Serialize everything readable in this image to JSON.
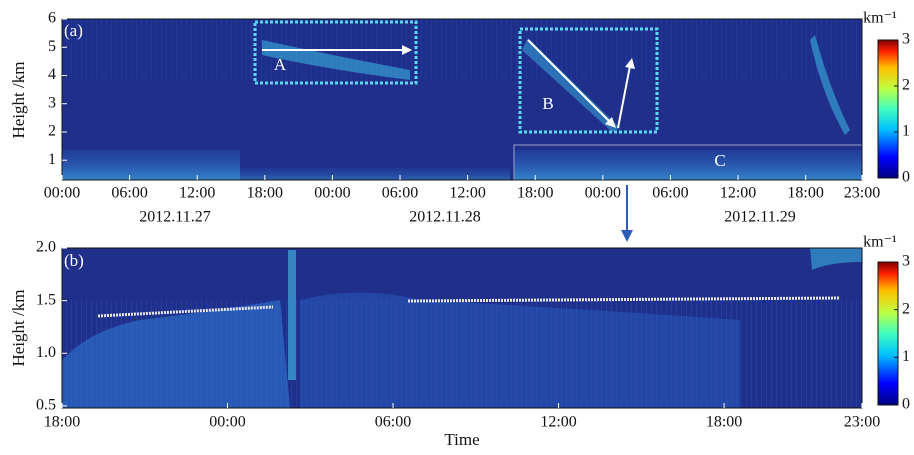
{
  "chart_data": [
    {
      "type": "heatmap",
      "panel_label": "(a)",
      "y_label": "Height /km",
      "xlim": [
        0,
        71
      ],
      "xticks": [
        {
          "value": 0,
          "label": "00:00"
        },
        {
          "value": 6,
          "label": "06:00"
        },
        {
          "value": 12,
          "label": "12:00"
        },
        {
          "value": 18,
          "label": "18:00"
        },
        {
          "value": 24,
          "label": "00:00"
        },
        {
          "value": 30,
          "label": "06:00"
        },
        {
          "value": 36,
          "label": "12:00"
        },
        {
          "value": 42,
          "label": "18:00"
        },
        {
          "value": 48,
          "label": "00:00"
        },
        {
          "value": 54,
          "label": "06:00"
        },
        {
          "value": 60,
          "label": "12:00"
        },
        {
          "value": 66,
          "label": "18:00"
        },
        {
          "value": 71,
          "label": "23:00"
        }
      ],
      "date_labels": [
        "2012.11.27",
        "2012.11.28",
        "2012.11.29"
      ],
      "ylim": [
        0.3,
        6
      ],
      "yticks": [
        1,
        2,
        3,
        4,
        5,
        6
      ],
      "colorbar": {
        "label": "km⁻¹",
        "lim": [
          0,
          3
        ],
        "ticks": [
          0,
          1,
          2,
          3
        ]
      },
      "annotations": [
        "A",
        "B",
        "C"
      ]
    },
    {
      "type": "heatmap",
      "panel_label": "(b)",
      "y_label": "Height /km",
      "x_label": "Time",
      "xlim": [
        42,
        71
      ],
      "xticks": [
        {
          "value": 42,
          "label": "18:00"
        },
        {
          "value": 48,
          "label": "00:00"
        },
        {
          "value": 54,
          "label": "06:00"
        },
        {
          "value": 60,
          "label": "12:00"
        },
        {
          "value": 66,
          "label": "18:00"
        },
        {
          "value": 71,
          "label": "23:00"
        }
      ],
      "ylim": [
        0.48,
        2.0
      ],
      "yticks": [
        {
          "value": 0.5,
          "label": "0.5"
        },
        {
          "value": 1.0,
          "label": "1.0"
        },
        {
          "value": 1.5,
          "label": "1.5"
        },
        {
          "value": 2.0,
          "label": "2.0"
        }
      ],
      "colorbar": {
        "label": "km⁻¹",
        "lim": [
          0,
          3
        ],
        "ticks": [
          0,
          1,
          2,
          3
        ]
      }
    }
  ]
}
